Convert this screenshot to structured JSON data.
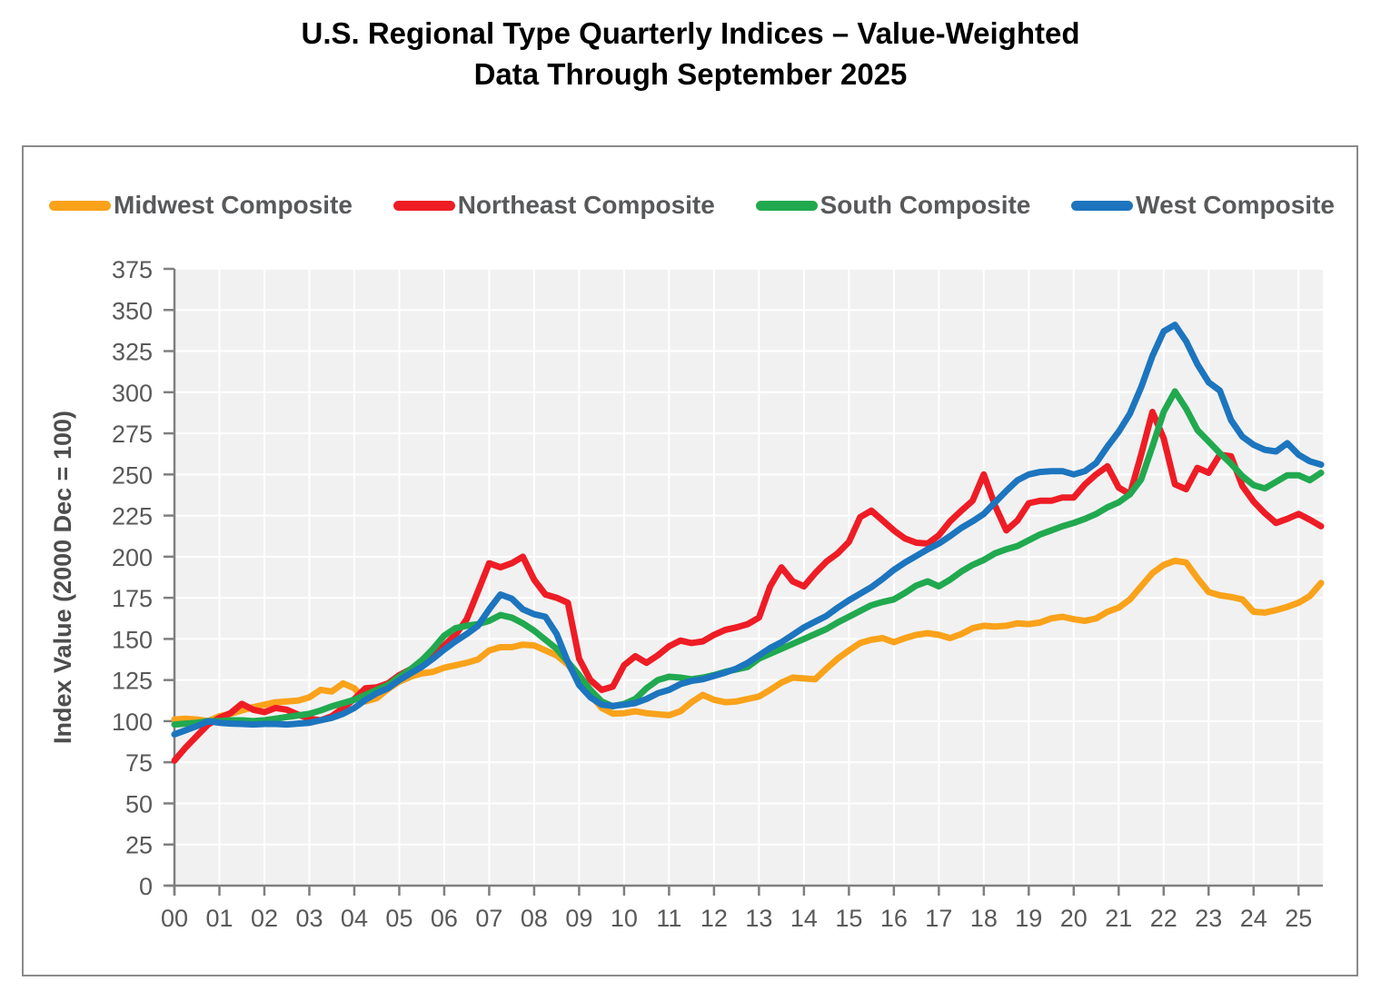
{
  "title": {
    "line1": "U.S. Regional Type Quarterly Indices – Value-Weighted",
    "line2": "Data Through September 2025"
  },
  "chart_data": {
    "type": "line",
    "title": "U.S. Regional Type Quarterly Indices – Value-Weighted, Data Through September 2025",
    "xlabel": "",
    "ylabel": "Index Value (2000 Dec = 100)",
    "ylim": [
      0,
      375
    ],
    "ytick_step": 25,
    "grid": true,
    "legend_position": "top",
    "plot_bg": "#f1f1f1",
    "gridline_color": "#ffffff",
    "axis_color": "#7f7f7f",
    "frequency": "quarterly",
    "x_start": "2000 Q1",
    "x_end": "2025 Q3",
    "points_per_year": 4,
    "x_tick_labels": [
      "00",
      "01",
      "02",
      "03",
      "04",
      "05",
      "06",
      "07",
      "08",
      "09",
      "10",
      "11",
      "12",
      "13",
      "14",
      "15",
      "16",
      "17",
      "18",
      "19",
      "20",
      "21",
      "22",
      "23",
      "24",
      "25"
    ],
    "series": [
      {
        "name": "Midwest Composite",
        "color": "#F9A21A",
        "values": [
          101,
          101.5,
          101,
          100,
          103,
          104.5,
          106.5,
          108.5,
          110,
          111.5,
          112,
          112.5,
          114.5,
          119,
          118,
          123,
          120,
          112,
          114,
          119.5,
          124,
          127,
          129,
          130,
          132.5,
          134,
          135.5,
          137.5,
          143,
          145,
          145,
          146.5,
          146,
          143,
          140,
          134.5,
          125,
          116,
          108,
          104.6,
          104.8,
          106,
          104.8,
          104.2,
          103.6,
          106,
          111.5,
          116,
          113,
          111.5,
          112,
          113.5,
          115,
          119,
          123.5,
          126.5,
          126,
          125.5,
          132,
          138,
          143,
          147.5,
          149.5,
          150.5,
          148,
          150.5,
          152.5,
          153.5,
          152.5,
          150.5,
          153,
          156.5,
          158,
          157.5,
          158,
          159.5,
          159,
          160,
          162.5,
          163.5,
          162,
          161,
          162.5,
          166.5,
          169,
          174,
          182,
          190,
          195,
          197.5,
          196.5,
          187,
          178.5,
          176.5,
          175.5,
          174,
          166.5,
          166,
          167.5,
          169.5,
          172,
          176,
          184
        ]
      },
      {
        "name": "Northeast Composite",
        "color": "#EE1C25",
        "values": [
          76,
          84,
          91,
          98,
          102,
          105,
          110.5,
          107,
          105.5,
          108,
          107,
          104,
          101.5,
          100.5,
          103,
          108,
          113.5,
          120,
          120.5,
          123,
          128,
          131.5,
          136,
          141,
          146,
          152.5,
          162,
          179,
          196,
          193.5,
          196,
          200,
          186,
          177,
          175,
          172,
          138,
          125,
          119,
          121,
          134,
          139.5,
          135.5,
          140,
          145.5,
          149,
          147.5,
          148.5,
          152.5,
          155.5,
          157,
          159,
          163,
          182,
          193.5,
          185,
          182,
          190,
          197,
          202,
          209,
          224,
          228,
          222,
          216,
          211,
          208.5,
          208,
          213,
          221.5,
          228,
          234,
          250,
          231,
          216,
          222,
          232.5,
          234,
          234,
          236,
          236,
          244,
          250,
          255,
          242,
          238,
          262,
          288,
          272,
          244,
          241,
          254,
          251,
          262,
          261,
          243,
          233.5,
          226.5,
          220.5,
          223,
          226,
          222.5,
          218.5
        ]
      },
      {
        "name": "South Composite",
        "color": "#21A94F",
        "values": [
          98,
          98.5,
          99,
          100,
          100,
          100.5,
          100.5,
          100,
          100.5,
          101.5,
          102.5,
          103.5,
          104.5,
          106.5,
          109,
          111,
          113,
          116,
          119,
          122,
          127,
          131.5,
          137,
          144,
          152,
          156.5,
          158,
          159,
          161,
          164.5,
          163,
          159.5,
          155,
          149.5,
          144,
          136,
          128,
          119,
          112,
          109,
          110.5,
          113.5,
          120,
          125,
          127,
          126.5,
          125.5,
          126.5,
          128,
          130,
          131.5,
          133,
          138,
          141,
          144,
          147,
          150,
          153,
          156,
          160,
          163.5,
          167,
          170.5,
          172.5,
          174,
          178,
          182.5,
          185,
          182,
          186,
          191,
          195,
          198,
          202,
          204.5,
          206.5,
          210,
          213.5,
          216,
          218.5,
          220.5,
          223,
          226,
          230,
          233,
          238,
          247,
          267,
          288,
          300.5,
          290,
          277,
          270,
          263,
          256.5,
          249,
          243.5,
          241.5,
          245.5,
          249.5,
          249.5,
          246.5,
          251
        ]
      },
      {
        "name": "West Composite",
        "color": "#1C75BE",
        "values": [
          92,
          94.5,
          97,
          100,
          99,
          98.5,
          98.3,
          98,
          98.3,
          98.3,
          98,
          98.5,
          99,
          100.5,
          102,
          104.5,
          108,
          113,
          117,
          120,
          125,
          129,
          133,
          138,
          143.5,
          148.5,
          153,
          158,
          168,
          177,
          174.5,
          168,
          165,
          163.5,
          153,
          136,
          122,
          114.5,
          110,
          109.3,
          110,
          111,
          113.5,
          117,
          119,
          122.5,
          124.5,
          125.5,
          127.5,
          129.5,
          132,
          135.5,
          140,
          144.5,
          148,
          152.5,
          157,
          160.5,
          164,
          169,
          173.5,
          177.5,
          181.5,
          186.5,
          192,
          196.5,
          200.5,
          204.5,
          208,
          212.5,
          217.5,
          221.5,
          226,
          233,
          240,
          246.5,
          250,
          251.5,
          252,
          252,
          250,
          252,
          257,
          267,
          276,
          287,
          303,
          322,
          337,
          341,
          331,
          317,
          306,
          301,
          283,
          273,
          268,
          265,
          264,
          269,
          262,
          258,
          256
        ]
      }
    ]
  }
}
